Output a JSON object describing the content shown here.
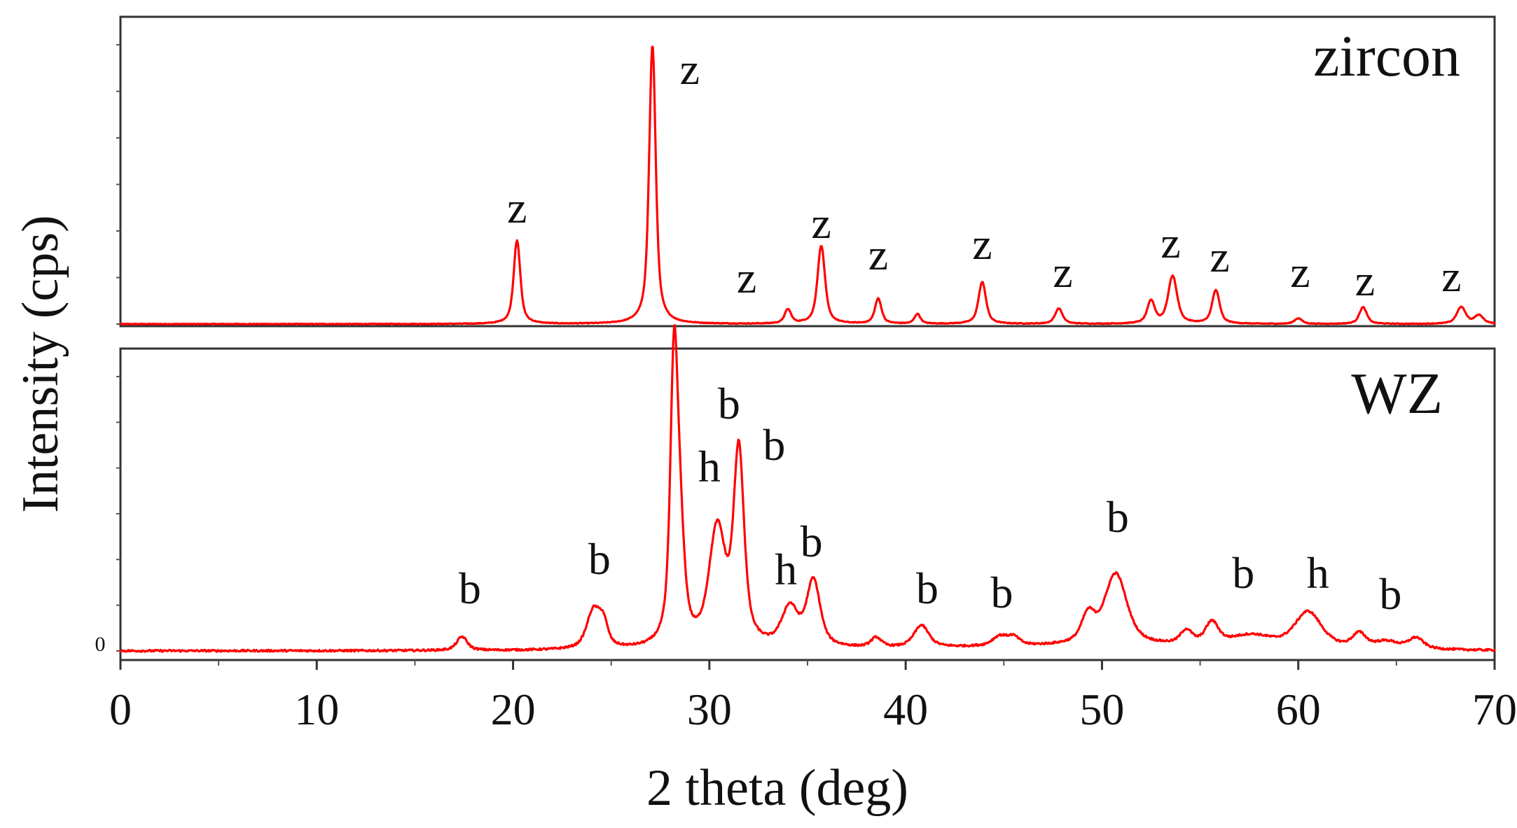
{
  "chart_data": {
    "type": "line",
    "xlabel": "2 theta (deg)",
    "ylabel": "Intensity (cps)",
    "xlim": [
      0,
      70
    ],
    "xticks": [
      0,
      10,
      20,
      30,
      40,
      50,
      60,
      70
    ],
    "xtick_labels": [
      "0",
      "10",
      "20",
      "30",
      "40",
      "50",
      "60",
      "70"
    ],
    "y_origin_label": "0",
    "line_color": "#ff0000",
    "panels": [
      {
        "name": "zircon",
        "label": "zircon",
        "ylim": [
          0,
          100
        ],
        "peaks": [
          {
            "x": 20.2,
            "y": 30,
            "w": 0.22
          },
          {
            "x": 27.1,
            "y": 100,
            "w": 0.22
          },
          {
            "x": 34.0,
            "y": 5,
            "w": 0.22
          },
          {
            "x": 35.7,
            "y": 28,
            "w": 0.25
          },
          {
            "x": 38.6,
            "y": 9,
            "w": 0.22
          },
          {
            "x": 40.6,
            "y": 3.5,
            "w": 0.2
          },
          {
            "x": 43.9,
            "y": 15,
            "w": 0.25
          },
          {
            "x": 47.8,
            "y": 5.5,
            "w": 0.25
          },
          {
            "x": 52.5,
            "y": 8,
            "w": 0.25
          },
          {
            "x": 53.6,
            "y": 17,
            "w": 0.3
          },
          {
            "x": 55.8,
            "y": 12,
            "w": 0.25
          },
          {
            "x": 60.0,
            "y": 2,
            "w": 0.25
          },
          {
            "x": 63.3,
            "y": 6,
            "w": 0.25
          },
          {
            "x": 68.3,
            "y": 6,
            "w": 0.3
          },
          {
            "x": 69.2,
            "y": 3,
            "w": 0.3
          }
        ],
        "annotations": [
          {
            "text": "z",
            "x": 20.2
          },
          {
            "text": "z",
            "x": 29.0
          },
          {
            "text": "z",
            "x": 31.9
          },
          {
            "text": "z",
            "x": 35.7
          },
          {
            "text": "z",
            "x": 38.6
          },
          {
            "text": "z",
            "x": 43.9
          },
          {
            "text": "z",
            "x": 48.0
          },
          {
            "text": "z",
            "x": 53.5
          },
          {
            "text": "z",
            "x": 56.0
          },
          {
            "text": "z",
            "x": 60.1
          },
          {
            "text": "z",
            "x": 63.4
          },
          {
            "text": "z",
            "x": 67.8
          }
        ]
      },
      {
        "name": "WZ",
        "label": "WZ",
        "ylim": [
          0,
          100
        ],
        "peaks": [
          {
            "x": 17.4,
            "y": 5,
            "w": 0.35
          },
          {
            "x": 24.1,
            "y": 14,
            "w": 0.45
          },
          {
            "x": 24.6,
            "y": 8,
            "w": 0.3
          },
          {
            "x": 28.2,
            "y": 100,
            "w": 0.25
          },
          {
            "x": 28.5,
            "y": 35,
            "w": 0.3
          },
          {
            "x": 30.4,
            "y": 42,
            "w": 0.55
          },
          {
            "x": 31.5,
            "y": 70,
            "w": 0.35
          },
          {
            "x": 34.1,
            "y": 14,
            "w": 0.55
          },
          {
            "x": 35.3,
            "y": 24,
            "w": 0.45
          },
          {
            "x": 38.5,
            "y": 3.5,
            "w": 0.35
          },
          {
            "x": 40.8,
            "y": 8,
            "w": 0.5
          },
          {
            "x": 44.8,
            "y": 3.5,
            "w": 0.5
          },
          {
            "x": 45.5,
            "y": 3,
            "w": 0.4
          },
          {
            "x": 49.3,
            "y": 10,
            "w": 0.45
          },
          {
            "x": 50.7,
            "y": 26,
            "w": 0.75
          },
          {
            "x": 54.3,
            "y": 5,
            "w": 0.4
          },
          {
            "x": 55.6,
            "y": 8,
            "w": 0.45
          },
          {
            "x": 57.6,
            "y": 4,
            "w": 1.4
          },
          {
            "x": 60.5,
            "y": 13,
            "w": 0.9
          },
          {
            "x": 63.1,
            "y": 5,
            "w": 0.45
          },
          {
            "x": 64.5,
            "y": 2.5,
            "w": 0.8
          },
          {
            "x": 66.0,
            "y": 4,
            "w": 0.5
          }
        ],
        "annotations": [
          {
            "text": "b",
            "x": 17.8
          },
          {
            "text": "b",
            "x": 24.4
          },
          {
            "text": "b",
            "x": 31.0
          },
          {
            "text": "h",
            "x": 30.0
          },
          {
            "text": "b",
            "x": 33.3
          },
          {
            "text": "h",
            "x": 33.9
          },
          {
            "text": "b",
            "x": 35.2
          },
          {
            "text": "b",
            "x": 41.1
          },
          {
            "text": "b",
            "x": 44.9
          },
          {
            "text": "b",
            "x": 50.8
          },
          {
            "text": "b",
            "x": 57.2
          },
          {
            "text": "h",
            "x": 61.0
          },
          {
            "text": "b",
            "x": 64.7
          }
        ]
      }
    ]
  }
}
